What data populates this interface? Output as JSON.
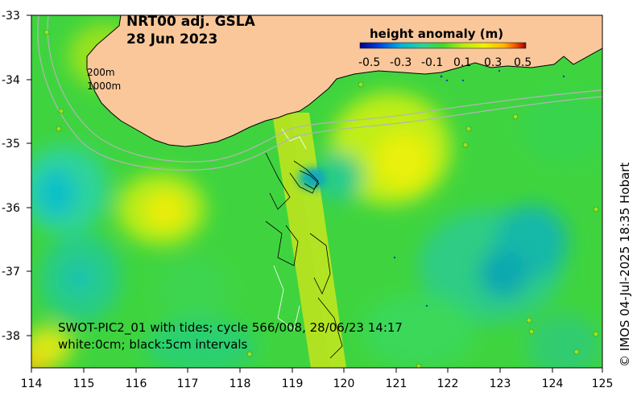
{
  "title_line1": "NRT00 adj. GSLA",
  "title_line2": "28 Jun 2023",
  "colorbar": {
    "title": "height anomaly (m)",
    "ticks": [
      "-0.5",
      "-0.3",
      "-0.1",
      "0.1",
      "0.3",
      "0.5"
    ],
    "min": -0.5,
    "max": 0.5,
    "colors": [
      "#00008b",
      "#0046e6",
      "#00b4dc",
      "#2dd296",
      "#3cdc28",
      "#b4eb14",
      "#f0f000",
      "#ffb400",
      "#f05000",
      "#a00000"
    ]
  },
  "isobath_labels": [
    "200m",
    "1000m"
  ],
  "x_axis": {
    "ticks": [
      "114",
      "115",
      "116",
      "117",
      "118",
      "119",
      "120",
      "121",
      "122",
      "123",
      "124",
      "125"
    ],
    "min": 114,
    "max": 125
  },
  "y_axis": {
    "ticks": [
      "-33",
      "-34",
      "-35",
      "-36",
      "-37",
      "-38"
    ],
    "min": -38.5,
    "max": -33
  },
  "swot_line1": "SWOT-PIC2_01 with tides; cycle 566/008, 28/06/23 14:17",
  "swot_line2": "white:0cm; black:5cm intervals",
  "credit": "© IMOS 04-Jul-2025 18:35 Hobart",
  "colors": {
    "land": "#f9c79a",
    "ocean_base": "#3fd43f",
    "coast": "#000000",
    "isobath": "#b4b4b4"
  }
}
